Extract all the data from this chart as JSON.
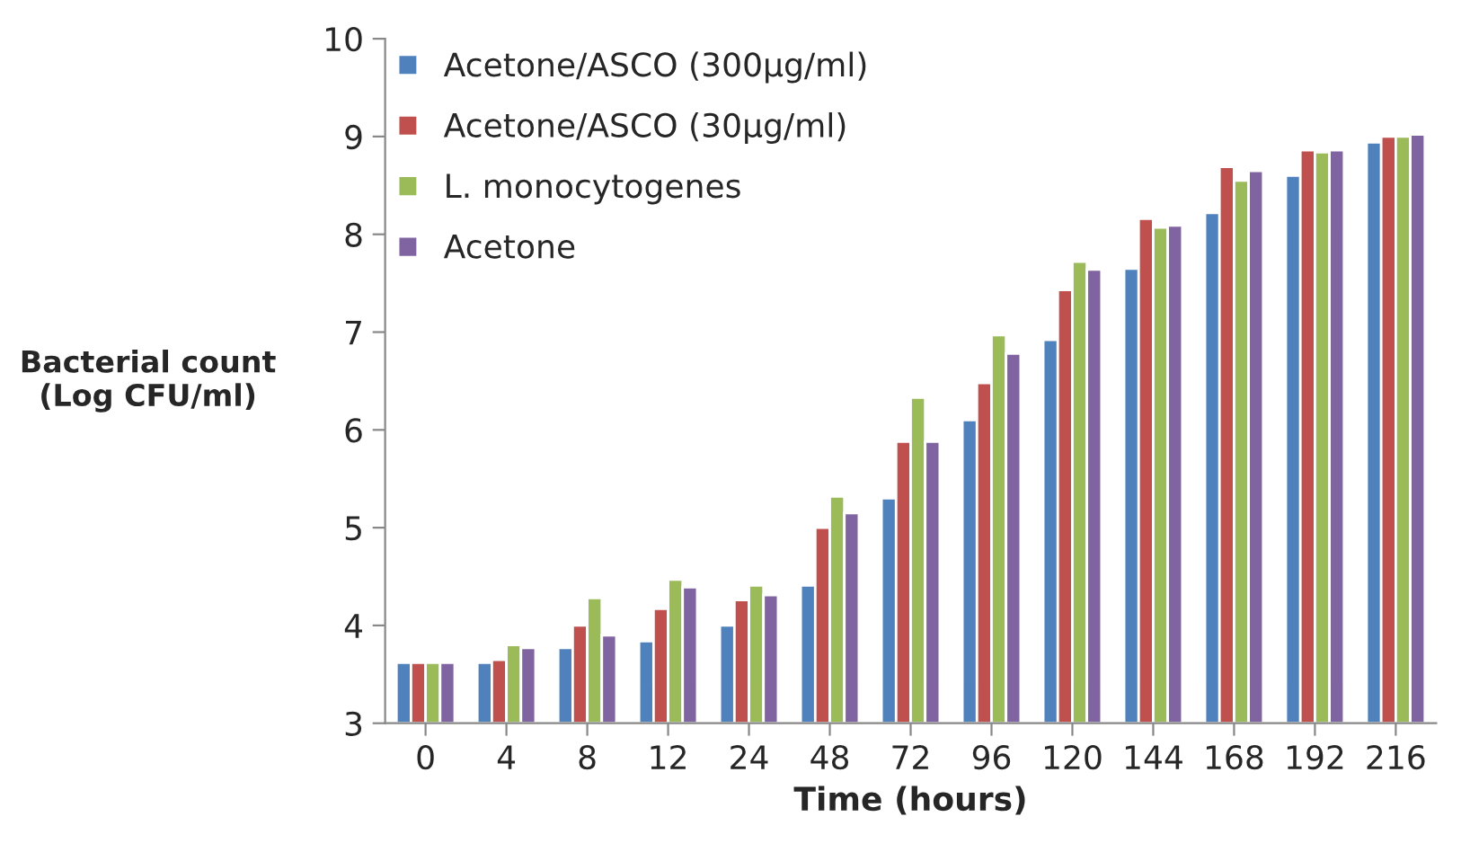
{
  "chart_data": {
    "type": "bar",
    "xlabel": "Time (hours)",
    "ylabel": "Bacterial count\n(Log CFU/ml)",
    "categories": [
      "0",
      "4",
      "8",
      "12",
      "24",
      "48",
      "72",
      "96",
      "120",
      "144",
      "168",
      "192",
      "216"
    ],
    "series": [
      {
        "name": "Acetone/ASCO (300µg/ml)",
        "color": "#4f81bd",
        "values": [
          3.62,
          3.62,
          3.77,
          3.84,
          4.0,
          4.41,
          5.3,
          6.1,
          6.92,
          7.65,
          8.22,
          8.6,
          8.94
        ]
      },
      {
        "name": "Acetone/ASCO (30µg/ml)",
        "color": "#c0504d",
        "values": [
          3.62,
          3.65,
          4.0,
          4.17,
          4.26,
          5.0,
          5.88,
          6.48,
          7.43,
          8.16,
          8.69,
          8.86,
          9.0
        ]
      },
      {
        "name": "L. monocytogenes",
        "color": "#9bbb59",
        "values": [
          3.62,
          3.8,
          4.28,
          4.47,
          4.41,
          5.32,
          6.33,
          6.97,
          7.72,
          8.07,
          8.55,
          8.84,
          9.0
        ]
      },
      {
        "name": "Acetone",
        "color": "#8064a2",
        "values": [
          3.62,
          3.77,
          3.9,
          4.39,
          4.31,
          5.15,
          5.88,
          6.78,
          7.64,
          8.09,
          8.65,
          8.86,
          9.02
        ]
      }
    ],
    "ylim": [
      3,
      10
    ],
    "yticks": [
      3,
      4,
      5,
      6,
      7,
      8,
      9,
      10
    ],
    "grid": false,
    "legend": "top left"
  }
}
